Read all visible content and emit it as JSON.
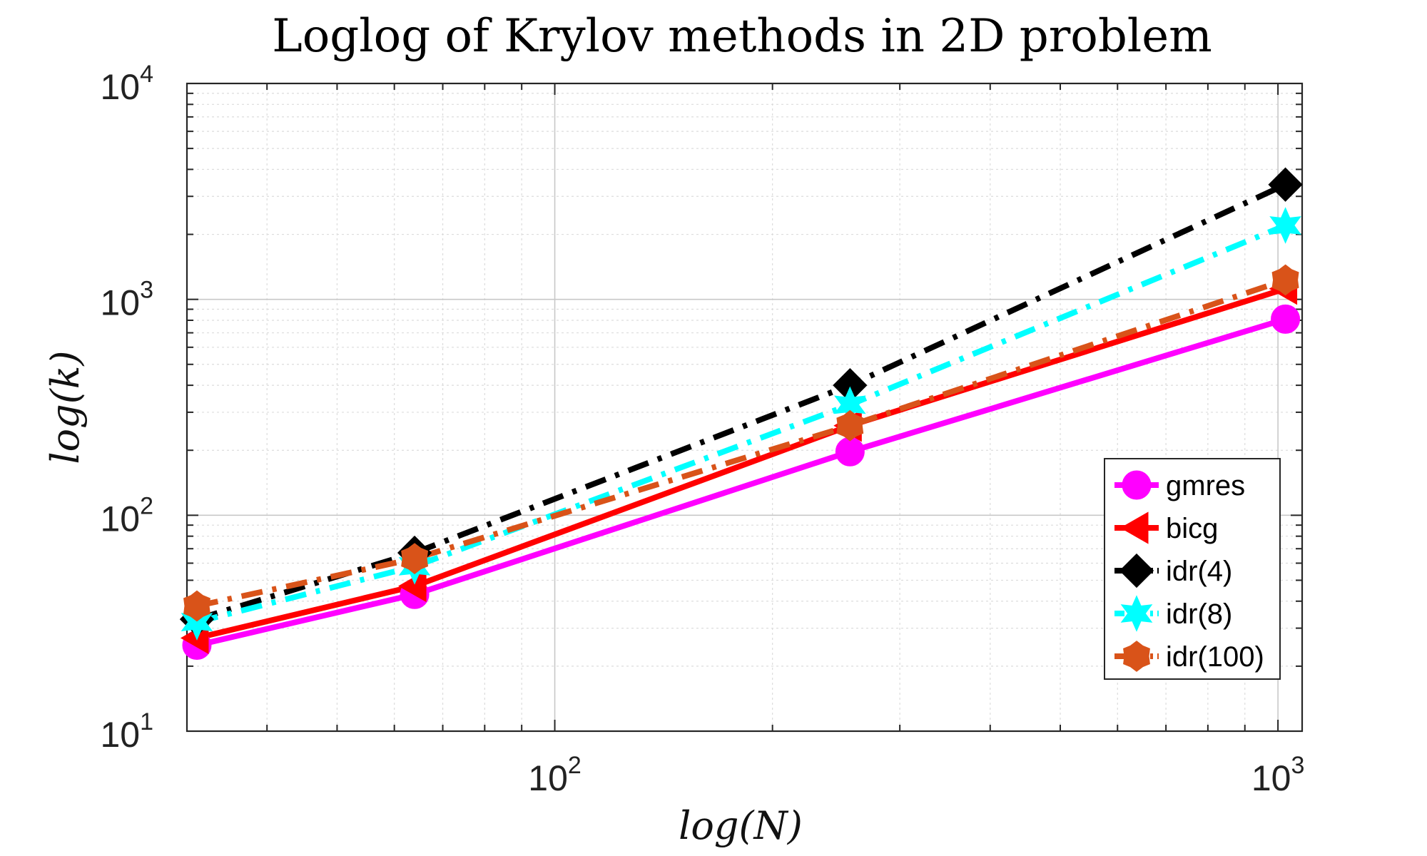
{
  "chart_data": {
    "type": "line",
    "title": "Loglog of Krylov methods in 2D problem",
    "xlabel": "log(N)",
    "ylabel": "log(k)",
    "xscale": "log",
    "yscale": "log",
    "xlim": [
      31,
      1080
    ],
    "ylim": [
      10,
      10000
    ],
    "x_ticks": [
      {
        "base": "10",
        "exp": "2",
        "value": 100
      },
      {
        "base": "10",
        "exp": "3",
        "value": 1000
      }
    ],
    "y_ticks": [
      {
        "base": "10",
        "exp": "1",
        "value": 10
      },
      {
        "base": "10",
        "exp": "2",
        "value": 100
      },
      {
        "base": "10",
        "exp": "3",
        "value": 1000
      },
      {
        "base": "10",
        "exp": "4",
        "value": 10000
      }
    ],
    "grid": true,
    "legend_position": "bottom-right",
    "x": [
      32,
      64,
      256,
      1024
    ],
    "series": [
      {
        "name": "gmres",
        "values": [
          25,
          43,
          197,
          810
        ],
        "color": "#ff00ff",
        "line_style": "solid",
        "marker": "circle"
      },
      {
        "name": "bicg",
        "values": [
          27,
          47,
          260,
          1120
        ],
        "color": "#ff0000",
        "line_style": "solid",
        "marker": "triangle-left"
      },
      {
        "name": "idr(4)",
        "values": [
          33,
          67,
          400,
          3400
        ],
        "color": "#000000",
        "line_style": "dash-dot",
        "marker": "diamond"
      },
      {
        "name": "idr(8)",
        "values": [
          32,
          58,
          325,
          2200
        ],
        "color": "#00ffff",
        "line_style": "dash-dot",
        "marker": "hexagram"
      },
      {
        "name": "idr(100)",
        "values": [
          38,
          63,
          260,
          1230
        ],
        "color": "#d95319",
        "line_style": "dash-dot",
        "marker": "hexagon"
      }
    ]
  }
}
